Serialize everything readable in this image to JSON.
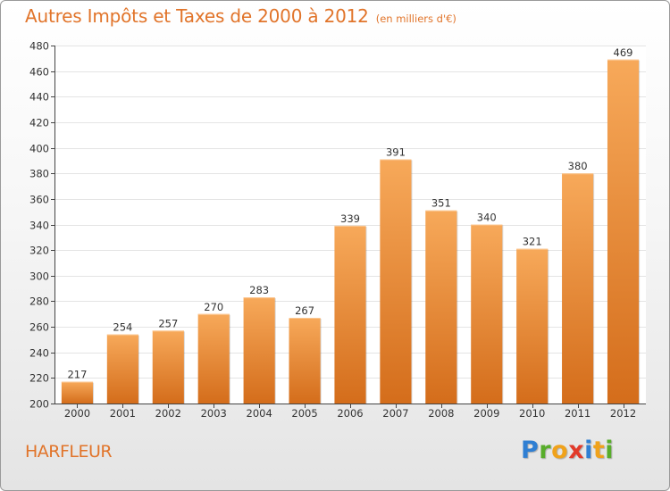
{
  "title": "Autres Impôts et Taxes de 2000 à 2012",
  "subtitle": "(en milliers d'€)",
  "city": "HARFLEUR",
  "logo": {
    "letters": [
      "P",
      "r",
      "o",
      "x",
      "i",
      "t",
      "i"
    ],
    "colors": [
      "#2f7fd3",
      "#58ad2b",
      "#f0a21b",
      "#e23a2a",
      "#2f7fd3",
      "#f0a21b",
      "#58ad2b"
    ]
  },
  "colors": {
    "accent": "#e1742a",
    "bar_top": "#f7a95a",
    "bar_bottom": "#d46d1b",
    "grid": "#e4e4e4",
    "axis": "#444444"
  },
  "chart_data": {
    "type": "bar",
    "categories": [
      "2000",
      "2001",
      "2002",
      "2003",
      "2004",
      "2005",
      "2006",
      "2007",
      "2008",
      "2009",
      "2010",
      "2011",
      "2012"
    ],
    "values": [
      217,
      254,
      257,
      270,
      283,
      267,
      339,
      391,
      351,
      340,
      321,
      380,
      469
    ],
    "yticks": [
      200,
      220,
      240,
      260,
      280,
      300,
      320,
      340,
      360,
      380,
      400,
      420,
      440,
      460,
      480
    ],
    "ylim": [
      200,
      480
    ],
    "grid": true,
    "data_labels": true
  }
}
